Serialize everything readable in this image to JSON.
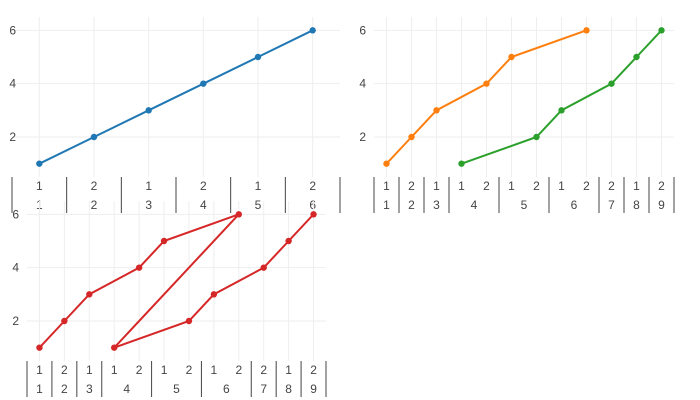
{
  "chart_data": [
    {
      "type": "line",
      "xaxis": {
        "type": "multicategory",
        "categories": [
          [
            "1",
            "1"
          ],
          [
            "2",
            "2"
          ],
          [
            "1",
            "3"
          ],
          [
            "2",
            "4"
          ],
          [
            "1",
            "5"
          ],
          [
            "2",
            "6"
          ]
        ]
      },
      "yaxis": {
        "ticks": [
          2,
          4,
          6
        ],
        "range": [
          0.5,
          6.5
        ]
      },
      "grid": true,
      "series": [
        {
          "color": "#1f77b4",
          "points": [
            [
              0,
              1
            ],
            [
              1,
              2
            ],
            [
              2,
              3
            ],
            [
              3,
              4
            ],
            [
              4,
              5
            ],
            [
              5,
              6
            ]
          ]
        }
      ]
    },
    {
      "type": "line",
      "xaxis": {
        "type": "multicategory",
        "categories": [
          [
            "1",
            "1"
          ],
          [
            "2",
            "2"
          ],
          [
            "1",
            "3"
          ],
          [
            "1",
            "4"
          ],
          [
            "2",
            "4"
          ],
          [
            "1",
            "5"
          ],
          [
            "2",
            "5"
          ],
          [
            "1",
            "6"
          ],
          [
            "2",
            "6"
          ],
          [
            "2",
            "7"
          ],
          [
            "1",
            "8"
          ],
          [
            "2",
            "9"
          ]
        ]
      },
      "yaxis": {
        "ticks": [
          2,
          4,
          6
        ],
        "range": [
          0.5,
          6.5
        ]
      },
      "grid": true,
      "series": [
        {
          "color": "#ff7f0e",
          "points": [
            [
              0,
              1
            ],
            [
              1,
              2
            ],
            [
              2,
              3
            ],
            [
              4,
              4
            ],
            [
              5,
              5
            ],
            [
              8,
              6
            ]
          ]
        },
        {
          "color": "#2ca02c",
          "points": [
            [
              3,
              1
            ],
            [
              6,
              2
            ],
            [
              7,
              3
            ],
            [
              9,
              4
            ],
            [
              10,
              5
            ],
            [
              11,
              6
            ]
          ]
        }
      ]
    },
    {
      "type": "line",
      "xaxis": {
        "type": "multicategory",
        "categories": [
          [
            "1",
            "1"
          ],
          [
            "2",
            "2"
          ],
          [
            "1",
            "3"
          ],
          [
            "1",
            "4"
          ],
          [
            "2",
            "4"
          ],
          [
            "1",
            "5"
          ],
          [
            "2",
            "5"
          ],
          [
            "1",
            "6"
          ],
          [
            "2",
            "6"
          ],
          [
            "2",
            "7"
          ],
          [
            "1",
            "8"
          ],
          [
            "2",
            "9"
          ]
        ]
      },
      "yaxis": {
        "ticks": [
          2,
          4,
          6
        ],
        "range": [
          0.5,
          6.5
        ]
      },
      "grid": true,
      "series": [
        {
          "color": "#d62728",
          "points": [
            [
              0,
              1
            ],
            [
              1,
              2
            ],
            [
              2,
              3
            ],
            [
              4,
              4
            ],
            [
              5,
              5
            ],
            [
              8,
              6
            ],
            [
              3,
              1
            ],
            [
              6,
              2
            ],
            [
              7,
              3
            ],
            [
              9,
              4
            ],
            [
              10,
              5
            ],
            [
              11,
              6
            ]
          ]
        }
      ]
    }
  ]
}
